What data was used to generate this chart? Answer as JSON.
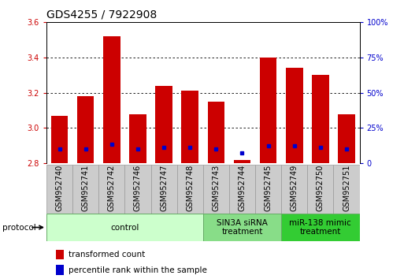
{
  "title": "GDS4255 / 7922908",
  "samples": [
    "GSM952740",
    "GSM952741",
    "GSM952742",
    "GSM952746",
    "GSM952747",
    "GSM952748",
    "GSM952743",
    "GSM952744",
    "GSM952745",
    "GSM952749",
    "GSM952750",
    "GSM952751"
  ],
  "transformed_count": [
    3.07,
    3.18,
    3.52,
    3.08,
    3.24,
    3.21,
    3.15,
    2.82,
    3.4,
    3.34,
    3.3,
    3.08
  ],
  "percentile_rank": [
    2.88,
    2.88,
    2.91,
    2.88,
    2.89,
    2.89,
    2.88,
    2.86,
    2.9,
    2.9,
    2.89,
    2.88
  ],
  "bar_bottom": 2.8,
  "ylim": [
    2.8,
    3.6
  ],
  "yticks_left": [
    2.8,
    3.0,
    3.2,
    3.4,
    3.6
  ],
  "yticks_right": [
    0,
    25,
    50,
    75,
    100
  ],
  "bar_color": "#cc0000",
  "dot_color": "#0000cc",
  "protocol_groups": [
    {
      "label": "control",
      "start": 0,
      "end": 5,
      "color": "#ccffcc",
      "edge_color": "#66aa66"
    },
    {
      "label": "SIN3A siRNA\ntreatment",
      "start": 6,
      "end": 8,
      "color": "#88dd88",
      "edge_color": "#66aa66"
    },
    {
      "label": "miR-138 mimic\ntreatment",
      "start": 9,
      "end": 11,
      "color": "#33cc33",
      "edge_color": "#66aa66"
    }
  ],
  "legend_red_label": "transformed count",
  "legend_blue_label": "percentile rank within the sample",
  "protocol_label": "protocol",
  "bar_width": 0.65,
  "title_fontsize": 10,
  "tick_fontsize": 7,
  "label_fontsize": 7.5,
  "protocol_fontsize": 7.5,
  "left_tick_color": "#cc0000",
  "right_tick_color": "#0000cc",
  "sample_box_color": "#cccccc",
  "sample_box_edge": "#999999"
}
